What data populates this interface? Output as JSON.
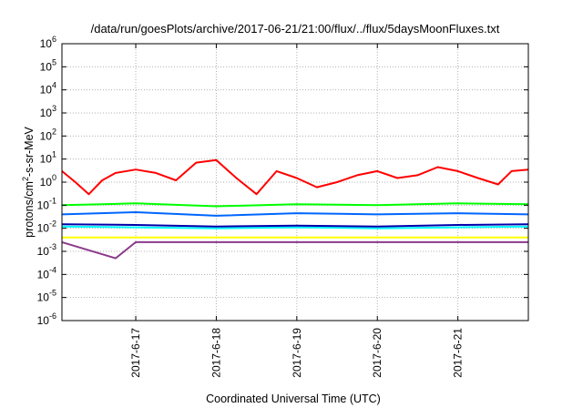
{
  "chart_data": {
    "type": "line",
    "title": "/data/run/goesPlots/archive/2017-06-21/21:00/flux/../flux/5daysMoonFluxes.txt",
    "xlabel": "Coordinated Universal Time (UTC)",
    "ylabel": "protons/cm2-s-sr-MeV",
    "yscale": "log",
    "ylim": [
      1e-06,
      1000000.0
    ],
    "xlim": [
      "2017-06-16 02:00",
      "2017-06-21 21:00"
    ],
    "x_ticks": [
      "2017-6-17",
      "2017-6-18",
      "2017-6-19",
      "2017-6-20",
      "2017-6-21"
    ],
    "y_ticks": [
      {
        "base": "10",
        "exp": "6"
      },
      {
        "base": "10",
        "exp": "5"
      },
      {
        "base": "10",
        "exp": "4"
      },
      {
        "base": "10",
        "exp": "3"
      },
      {
        "base": "10",
        "exp": "2"
      },
      {
        "base": "10",
        "exp": "1"
      },
      {
        "base": "10",
        "exp": "0"
      },
      {
        "base": "10",
        "exp": "-1"
      },
      {
        "base": "10",
        "exp": "-2"
      },
      {
        "base": "10",
        "exp": "-3"
      },
      {
        "base": "10",
        "exp": "-4"
      },
      {
        "base": "10",
        "exp": "-5"
      },
      {
        "base": "10",
        "exp": "-6"
      }
    ],
    "grid": true,
    "series": [
      {
        "color": "#ff0000",
        "values": [
          [
            "2017-06-16 02:00",
            3.0
          ],
          [
            "2017-06-16 06:00",
            1.0
          ],
          [
            "2017-06-16 10:00",
            0.3
          ],
          [
            "2017-06-16 14:00",
            1.2
          ],
          [
            "2017-06-16 18:00",
            2.5
          ],
          [
            "2017-06-17 00:00",
            3.5
          ],
          [
            "2017-06-17 06:00",
            2.5
          ],
          [
            "2017-06-17 12:00",
            1.2
          ],
          [
            "2017-06-17 18:00",
            7.0
          ],
          [
            "2017-06-18 00:00",
            9.0
          ],
          [
            "2017-06-18 06:00",
            1.5
          ],
          [
            "2017-06-18 12:00",
            0.3
          ],
          [
            "2017-06-18 18:00",
            3.0
          ],
          [
            "2017-06-19 00:00",
            1.5
          ],
          [
            "2017-06-19 06:00",
            0.6
          ],
          [
            "2017-06-19 12:00",
            1.0
          ],
          [
            "2017-06-19 18:00",
            2.0
          ],
          [
            "2017-06-20 00:00",
            3.0
          ],
          [
            "2017-06-20 06:00",
            1.5
          ],
          [
            "2017-06-20 12:00",
            2.0
          ],
          [
            "2017-06-20 18:00",
            4.5
          ],
          [
            "2017-06-21 00:00",
            3.0
          ],
          [
            "2017-06-21 06:00",
            1.5
          ],
          [
            "2017-06-21 12:00",
            0.8
          ],
          [
            "2017-06-21 16:00",
            3.0
          ],
          [
            "2017-06-21 21:00",
            3.5
          ]
        ]
      },
      {
        "color": "#00ff00",
        "values": [
          [
            "2017-06-16 02:00",
            0.1
          ],
          [
            "2017-06-17 00:00",
            0.12
          ],
          [
            "2017-06-18 00:00",
            0.09
          ],
          [
            "2017-06-19 00:00",
            0.11
          ],
          [
            "2017-06-20 00:00",
            0.1
          ],
          [
            "2017-06-21 00:00",
            0.12
          ],
          [
            "2017-06-21 21:00",
            0.11
          ]
        ]
      },
      {
        "color": "#0066ff",
        "values": [
          [
            "2017-06-16 02:00",
            0.04
          ],
          [
            "2017-06-17 00:00",
            0.05
          ],
          [
            "2017-06-18 00:00",
            0.035
          ],
          [
            "2017-06-19 00:00",
            0.045
          ],
          [
            "2017-06-20 00:00",
            0.04
          ],
          [
            "2017-06-21 00:00",
            0.045
          ],
          [
            "2017-06-21 21:00",
            0.04
          ]
        ]
      },
      {
        "color": "#00ffff",
        "values": [
          [
            "2017-06-16 02:00",
            0.012
          ],
          [
            "2017-06-17 00:00",
            0.011
          ],
          [
            "2017-06-18 00:00",
            0.01
          ],
          [
            "2017-06-19 00:00",
            0.011
          ],
          [
            "2017-06-20 00:00",
            0.01
          ],
          [
            "2017-06-21 00:00",
            0.011
          ],
          [
            "2017-06-21 21:00",
            0.012
          ]
        ]
      },
      {
        "color": "#0000aa",
        "values": [
          [
            "2017-06-16 02:00",
            0.015
          ],
          [
            "2017-06-17 00:00",
            0.014
          ],
          [
            "2017-06-18 00:00",
            0.012
          ],
          [
            "2017-06-19 00:00",
            0.013
          ],
          [
            "2017-06-20 00:00",
            0.012
          ],
          [
            "2017-06-21 00:00",
            0.014
          ],
          [
            "2017-06-21 21:00",
            0.015
          ]
        ]
      },
      {
        "color": "#ffff00",
        "values": [
          [
            "2017-06-16 02:00",
            0.004
          ],
          [
            "2017-06-17 00:00",
            0.004
          ],
          [
            "2017-06-18 00:00",
            0.004
          ],
          [
            "2017-06-19 00:00",
            0.004
          ],
          [
            "2017-06-20 00:00",
            0.004
          ],
          [
            "2017-06-21 00:00",
            0.004
          ],
          [
            "2017-06-21 21:00",
            0.004
          ]
        ]
      },
      {
        "color": "#8b3a8b",
        "values": [
          [
            "2017-06-16 02:00",
            0.0025
          ],
          [
            "2017-06-16 18:00",
            0.0005
          ],
          [
            "2017-06-17 00:00",
            0.0025
          ],
          [
            "2017-06-18 00:00",
            0.0025
          ],
          [
            "2017-06-19 00:00",
            0.0025
          ],
          [
            "2017-06-20 00:00",
            0.0025
          ],
          [
            "2017-06-21 00:00",
            0.0025
          ],
          [
            "2017-06-21 21:00",
            0.0025
          ]
        ]
      }
    ]
  }
}
